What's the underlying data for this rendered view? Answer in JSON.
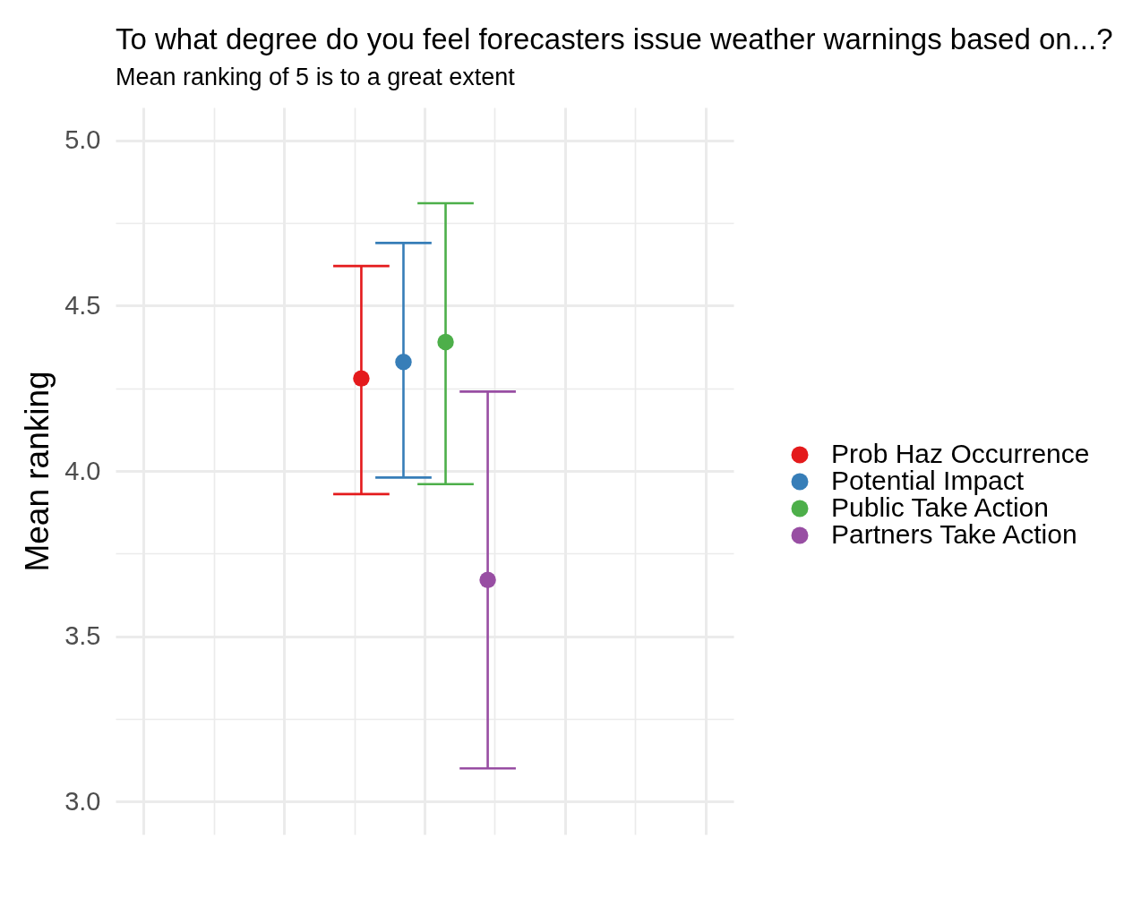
{
  "chart_data": {
    "type": "scatter",
    "title": "To what degree do you feel forecasters issue weather warnings based on...?",
    "subtitle": "Mean ranking of 5 is to a great extent",
    "ylabel": "Mean ranking",
    "categories": [
      null
    ],
    "series": [
      {
        "name": "Prob Haz Occurrence",
        "color": "#e41a1c",
        "values": [
          4.28
        ],
        "errors": [
          [
            3.93,
            4.62
          ]
        ]
      },
      {
        "name": "Potential Impact",
        "color": "#377eb8",
        "values": [
          4.33
        ],
        "errors": [
          [
            3.98,
            4.69
          ]
        ]
      },
      {
        "name": "Public Take Action",
        "color": "#4daf4a",
        "values": [
          4.39
        ],
        "errors": [
          [
            3.96,
            4.81
          ]
        ]
      },
      {
        "name": "Partners Take Action",
        "color": "#984ea3",
        "values": [
          3.67
        ],
        "errors": [
          [
            3.1,
            4.24
          ]
        ]
      }
    ],
    "ylim": [
      2.9,
      5.1
    ],
    "yticks": [
      {
        "value": 3,
        "label": "3.0"
      },
      {
        "value": 3.25,
        "label": null
      },
      {
        "value": 3.5,
        "label": "3.5"
      },
      {
        "value": 3.75,
        "label": null
      },
      {
        "value": 4,
        "label": "4.0"
      },
      {
        "value": 4.25,
        "label": null
      },
      {
        "value": 4.5,
        "label": "4.5"
      },
      {
        "value": 4.75,
        "label": null
      },
      {
        "value": 5,
        "label": "5.0"
      }
    ],
    "grid": true,
    "legend": "right",
    "tick_labels": "y",
    "marker": "circle"
  }
}
